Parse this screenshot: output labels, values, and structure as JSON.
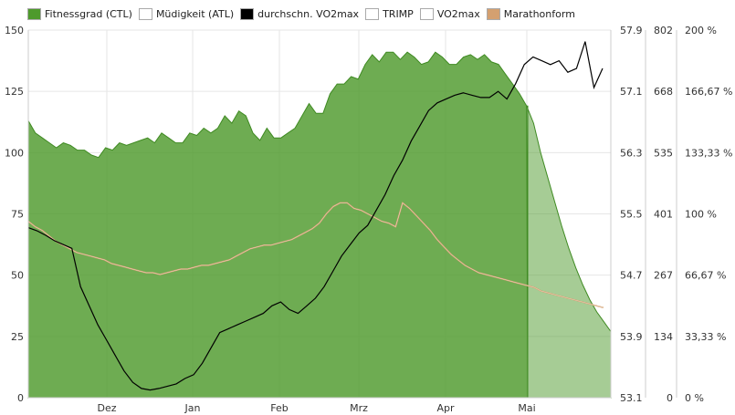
{
  "legend": [
    {
      "label": "Fitnessgrad (CTL)",
      "color": "#4e9a2c"
    },
    {
      "label": "Müdigkeit (ATL)",
      "color": "#ffffff"
    },
    {
      "label": "durchschn. VO2max",
      "color": "#000000"
    },
    {
      "label": "TRIMP",
      "color": "#ffffff"
    },
    {
      "label": "VO2max",
      "color": "#ffffff"
    },
    {
      "label": "Marathonform",
      "color": "#d4a070"
    }
  ],
  "chart_data": {
    "type": "area",
    "x_labels": [
      "Dez",
      "Jan",
      "Feb",
      "Mrz",
      "Apr",
      "Mai"
    ],
    "axes": {
      "left": {
        "ticks": [
          "150",
          "125",
          "100",
          "75",
          "50",
          "25",
          "0"
        ],
        "range": [
          0,
          150
        ]
      },
      "vo2": {
        "ticks": [
          "57.9",
          "57.1",
          "56.3",
          "55.5",
          "54.7",
          "53.9",
          "53.1"
        ],
        "range": [
          53.1,
          57.9
        ]
      },
      "trimp": {
        "ticks": [
          "802",
          "668",
          "535",
          "401",
          "267",
          "134",
          "0"
        ],
        "range": [
          0,
          802
        ]
      },
      "percent": {
        "ticks": [
          "200 %",
          "166,67 %",
          "133,33 %",
          "100 %",
          "66,67 %",
          "33,33 %",
          "0 %"
        ],
        "range": [
          0,
          200
        ]
      }
    },
    "grid": true,
    "forecast_start": "Mai",
    "series": [
      {
        "name": "Fitnessgrad (CTL)",
        "axis": "left",
        "color": "#4e9a2c",
        "values": [
          113,
          108,
          106,
          104,
          102,
          104,
          103,
          101,
          101,
          99,
          98,
          102,
          101,
          104,
          103,
          104,
          105,
          106,
          104,
          108,
          106,
          104,
          104,
          108,
          107,
          110,
          108,
          110,
          115,
          112,
          117,
          115,
          108,
          105,
          110,
          106,
          106,
          108,
          110,
          115,
          120,
          116,
          116,
          124,
          128,
          128,
          131,
          130,
          136,
          140,
          137,
          141,
          141,
          138,
          141,
          139,
          136,
          137,
          141,
          139,
          136,
          136,
          139,
          140,
          138,
          140,
          137,
          136,
          132,
          128,
          124,
          119,
          112,
          100,
          90,
          80,
          70,
          61,
          53,
          46,
          40,
          35,
          31,
          27
        ]
      },
      {
        "name": "durchschn. VO2max",
        "axis": "vo2",
        "color": "#000000",
        "values": [
          55.32,
          55.28,
          55.22,
          55.15,
          55.1,
          55.05,
          54.55,
          54.3,
          54.05,
          53.85,
          53.65,
          53.45,
          53.3,
          53.22,
          53.2,
          53.22,
          53.25,
          53.28,
          53.35,
          53.4,
          53.55,
          53.75,
          53.95,
          54.0,
          54.05,
          54.1,
          54.15,
          54.2,
          54.3,
          54.35,
          54.25,
          54.2,
          54.3,
          54.4,
          54.55,
          54.75,
          54.95,
          55.1,
          55.25,
          55.35,
          55.55,
          55.75,
          56.0,
          56.2,
          56.45,
          56.65,
          56.85,
          56.95,
          57.0,
          57.05,
          57.08,
          57.05,
          57.02,
          57.02,
          57.1,
          57.0,
          57.2,
          57.45,
          57.55,
          57.5,
          57.45,
          57.5,
          57.35,
          57.4,
          57.75,
          57.15,
          57.4
        ]
      },
      {
        "name": "Marathonform",
        "axis": "percent",
        "color": "#d4a070",
        "values": [
          96,
          93,
          91,
          88,
          85,
          83,
          81,
          79,
          78,
          77,
          76,
          75,
          73,
          72,
          71,
          70,
          69,
          68,
          68,
          67,
          68,
          69,
          70,
          70,
          71,
          72,
          72,
          73,
          74,
          75,
          77,
          79,
          81,
          82,
          83,
          83,
          84,
          85,
          86,
          88,
          90,
          92,
          95,
          100,
          104,
          106,
          106,
          103,
          102,
          100,
          98,
          96,
          95,
          93,
          106,
          103,
          99,
          95,
          91,
          86,
          82,
          78,
          75,
          72,
          70,
          68,
          67,
          66,
          65,
          64,
          63,
          62,
          61,
          60,
          58,
          57,
          56,
          55,
          54,
          53,
          52,
          51,
          50,
          49
        ]
      }
    ]
  }
}
